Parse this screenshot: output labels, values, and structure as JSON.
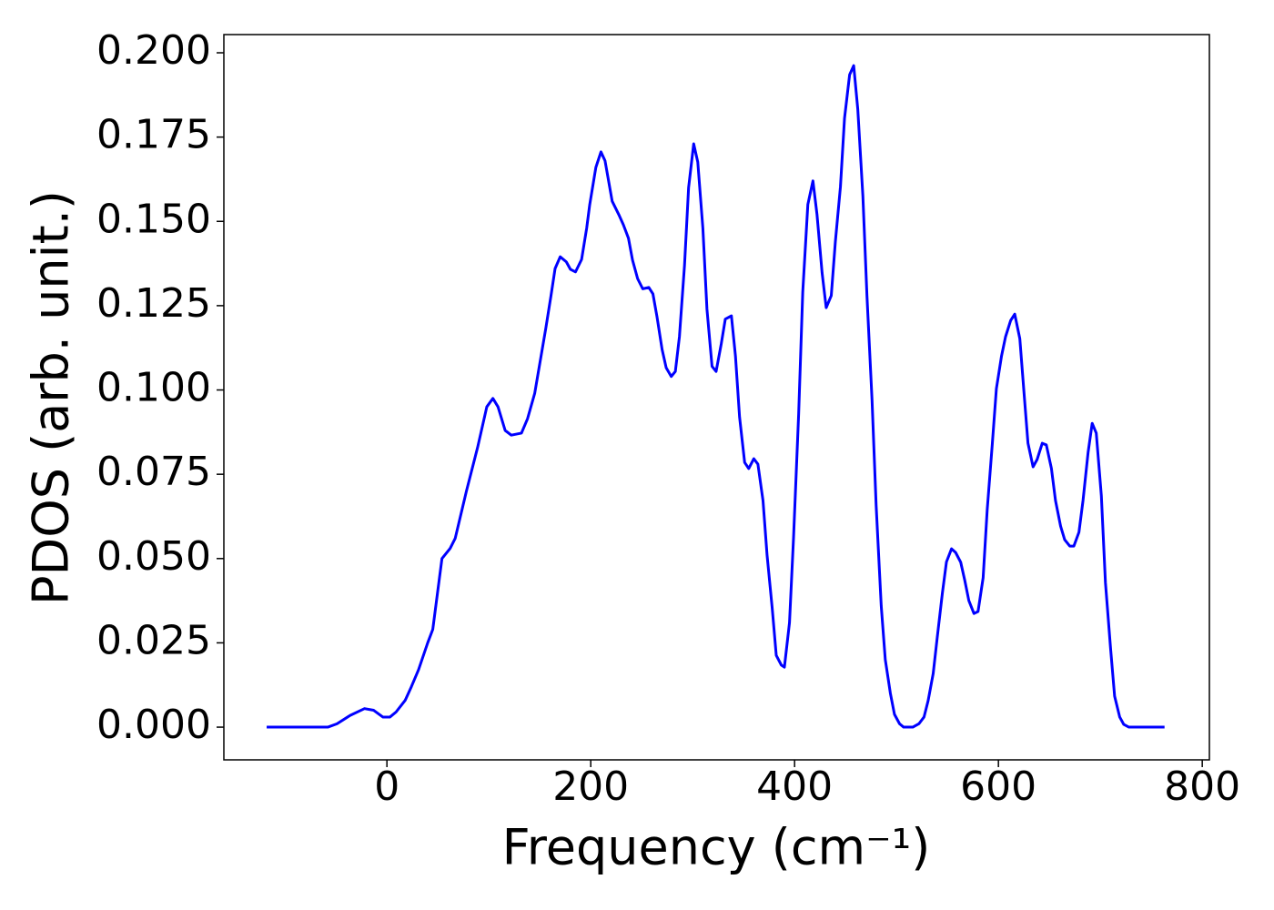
{
  "chart_data": {
    "type": "line",
    "xlabel": "Frequency (cm⁻¹)",
    "ylabel": "PDOS (arb. unit.)",
    "xlim": [
      -160,
      807
    ],
    "ylim": [
      -0.0097,
      0.2054
    ],
    "xticks": [
      0,
      200,
      400,
      600,
      800
    ],
    "yticks": [
      {
        "value": 0,
        "label": "0.000"
      },
      0.025,
      {
        "value": 0.05,
        "label": "0.050"
      },
      0.075,
      {
        "value": 0.1,
        "label": "0.100"
      },
      0.125,
      {
        "value": 0.15,
        "label": "0.150"
      },
      0.175,
      {
        "value": 0.2,
        "label": "0.200"
      }
    ],
    "color": "#0000ff",
    "x": [
      -118,
      -58,
      -49,
      -36,
      -22,
      -13,
      -4,
      3,
      9,
      18,
      24,
      31,
      40,
      45,
      54,
      62,
      67,
      78,
      89,
      98,
      104,
      109,
      116,
      122,
      132,
      138,
      145,
      156,
      161,
      165,
      170,
      176,
      180,
      185,
      191,
      196,
      199,
      205,
      210,
      214,
      221,
      228,
      232,
      237,
      241,
      246,
      251,
      257,
      261,
      265,
      270,
      274,
      279,
      283,
      287,
      292,
      296,
      301,
      305,
      310,
      314,
      319,
      323,
      328,
      332,
      338,
      342,
      346,
      351,
      355,
      360,
      364,
      369,
      373,
      378,
      382,
      387,
      390,
      395,
      399,
      404,
      408,
      413,
      418,
      422,
      427,
      431,
      436,
      440,
      445,
      449,
      454,
      458,
      462,
      467,
      471,
      476,
      480,
      485,
      489,
      494,
      498,
      503,
      507,
      516,
      522,
      527,
      531,
      536,
      540,
      545,
      549,
      554,
      558,
      563,
      567,
      571,
      576,
      580,
      585,
      589,
      594,
      598,
      603,
      607,
      612,
      616,
      621,
      625,
      629,
      634,
      638,
      643,
      647,
      652,
      656,
      661,
      665,
      670,
      674,
      679,
      683,
      688,
      692,
      696,
      701,
      705,
      710,
      714,
      719,
      723,
      728,
      763
    ],
    "values": [
      0,
      0,
      0.001,
      0.0035,
      0.0055,
      0.005,
      0.003,
      0.003,
      0.0045,
      0.008,
      0.012,
      0.017,
      0.025,
      0.029,
      0.05,
      0.053,
      0.056,
      0.07,
      0.083,
      0.095,
      0.0975,
      0.095,
      0.088,
      0.0866,
      0.0872,
      0.0915,
      0.099,
      0.1185,
      0.128,
      0.136,
      0.1395,
      0.138,
      0.1358,
      0.135,
      0.1387,
      0.148,
      0.155,
      0.166,
      0.1706,
      0.168,
      0.156,
      0.1517,
      0.149,
      0.145,
      0.1385,
      0.133,
      0.13,
      0.1304,
      0.1285,
      0.1217,
      0.112,
      0.1066,
      0.104,
      0.1055,
      0.1158,
      0.137,
      0.16,
      0.173,
      0.1676,
      0.148,
      0.124,
      0.107,
      0.1055,
      0.1136,
      0.121,
      0.122,
      0.11,
      0.092,
      0.0785,
      0.0767,
      0.0796,
      0.078,
      0.0672,
      0.051,
      0.0354,
      0.0213,
      0.0184,
      0.0178,
      0.031,
      0.0564,
      0.093,
      0.129,
      0.155,
      0.162,
      0.152,
      0.1347,
      0.1244,
      0.128,
      0.144,
      0.1603,
      0.1806,
      0.1935,
      0.1962,
      0.1833,
      0.1576,
      0.128,
      0.097,
      0.0659,
      0.036,
      0.02,
      0.01,
      0.0038,
      0.001,
      0,
      0,
      0.001,
      0.003,
      0.0078,
      0.0159,
      0.0267,
      0.0397,
      0.049,
      0.0529,
      0.0518,
      0.0489,
      0.0435,
      0.0375,
      0.0337,
      0.0343,
      0.0443,
      0.0645,
      0.084,
      0.1004,
      0.11,
      0.1158,
      0.1206,
      0.1225,
      0.1152,
      0.0996,
      0.0842,
      0.0772,
      0.0794,
      0.0842,
      0.0837,
      0.0767,
      0.0672,
      0.0596,
      0.0556,
      0.0537,
      0.0537,
      0.0578,
      0.0672,
      0.0815,
      0.0901,
      0.0872,
      0.0686,
      0.0429,
      0.0235,
      0.0092,
      0.003,
      0.0008,
      0,
      0
    ]
  }
}
